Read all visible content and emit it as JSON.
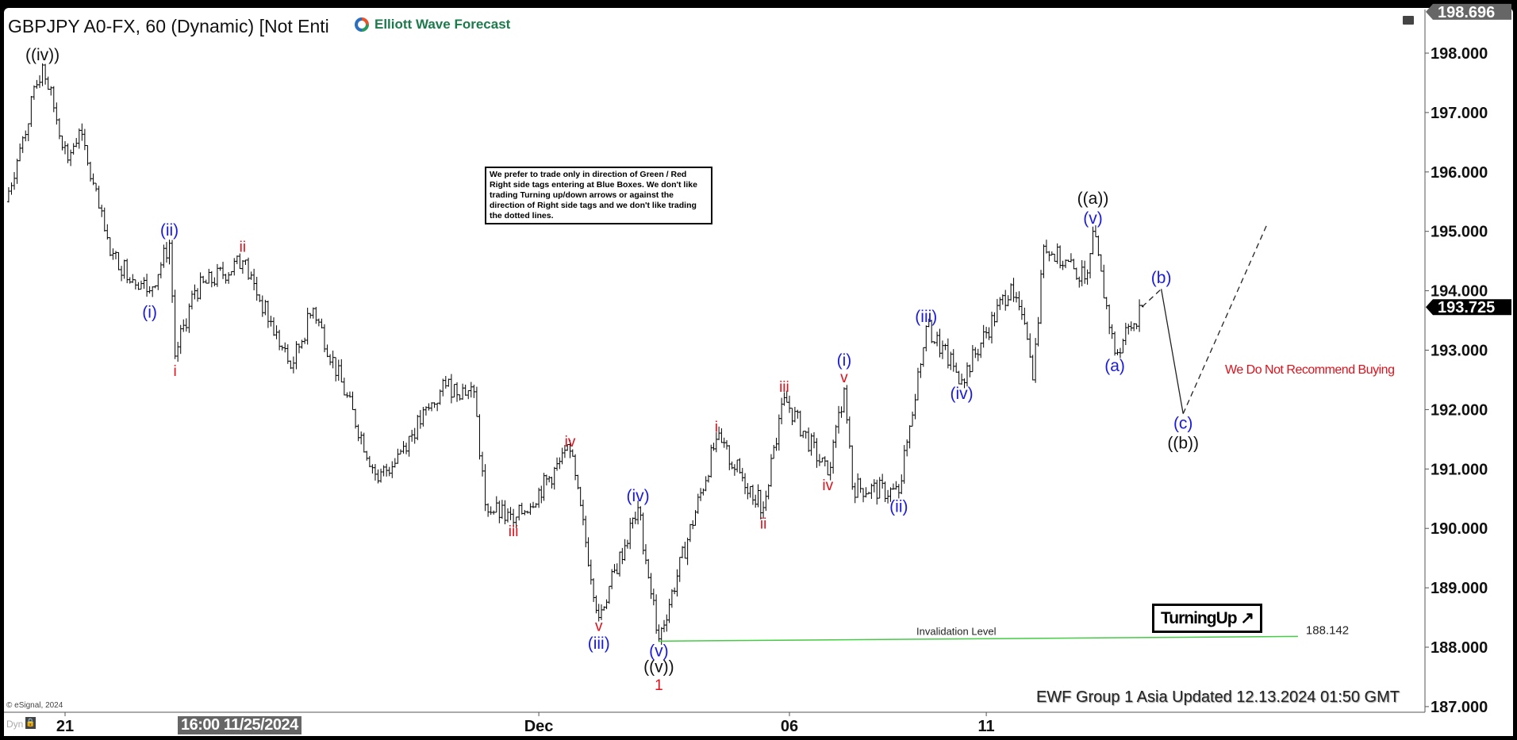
{
  "header": {
    "title": "GBPJPY A0-FX, 60 (Dynamic) [Not Enti",
    "logo_text": "Elliott Wave Forecast"
  },
  "notes": {
    "info_box": "We prefer to trade only in direction of Green / Red Right side tags entering at Blue Boxes. We don't like trading Turning up/down arrows or against the direction of Right side tags and we don't like trading the dotted lines.",
    "turning_up": "TurningUp",
    "turning_up_icon": "arrow-up-right-icon",
    "no_buy": "We Do Not Recommend Buying",
    "footer": "EWF Group 1 Asia Updated 12.13.2024 01:50 GMT",
    "copyright": "© eSignal, 2024",
    "dyn": "Dyn",
    "cursor_date": "16:00 11/25/2024"
  },
  "chart_data": {
    "type": "ohlc",
    "symbol": "GBPJPY",
    "interval": "60",
    "ylim": [
      186.9,
      198.8
    ],
    "y_ticks": [
      "198.000",
      "197.000",
      "196.000",
      "195.000",
      "194.000",
      "193.000",
      "192.000",
      "191.000",
      "190.000",
      "189.000",
      "188.000",
      "187.000"
    ],
    "x_ticks": [
      {
        "label": "21",
        "date": "2024-11-21 00:00"
      },
      {
        "label": "Dec",
        "date": "2024-12-02 00:00"
      },
      {
        "label": "06",
        "date": "2024-12-06 00:00"
      },
      {
        "label": "11",
        "date": "2024-12-11 00:00"
      }
    ],
    "high_tag": "198.696",
    "last_price_tag": "193.725",
    "price_path": [
      [
        "2024-11-20 03:00",
        195.5
      ],
      [
        "2024-11-20 08:00",
        196.4
      ],
      [
        "2024-11-20 16:00",
        197.8
      ],
      [
        "2024-11-21 01:00",
        196.2
      ],
      [
        "2024-11-21 05:00",
        196.7
      ],
      [
        "2024-11-21 16:00",
        194.6
      ],
      [
        "2024-11-22 06:00",
        194.0
      ],
      [
        "2024-11-22 13:00",
        194.8
      ],
      [
        "2024-11-22 15:00",
        192.9
      ],
      [
        "2024-11-22 22:00",
        194.0
      ],
      [
        "2024-11-25 15:00",
        194.5
      ],
      [
        "2024-11-26 08:00",
        192.7
      ],
      [
        "2024-11-26 16:00",
        193.7
      ],
      [
        "2024-11-27 15:00",
        190.8
      ],
      [
        "2024-11-28 15:00",
        192.4
      ],
      [
        "2024-11-29 01:00",
        192.3
      ],
      [
        "2024-11-29 05:00",
        190.4
      ],
      [
        "2024-11-29 15:00",
        190.1
      ],
      [
        "2024-12-02 12:00",
        191.3
      ],
      [
        "2024-12-02 23:00",
        188.5
      ],
      [
        "2024-12-03 14:00",
        190.35
      ],
      [
        "2024-12-03 22:00",
        188.14
      ],
      [
        "2024-12-04 20:00",
        191.5
      ],
      [
        "2024-12-05 14:00",
        190.35
      ],
      [
        "2024-12-05 22:00",
        192.2
      ],
      [
        "2024-12-06 14:00",
        190.9
      ],
      [
        "2024-12-06 20:00",
        192.35
      ],
      [
        "2024-12-06 23:00",
        190.7
      ],
      [
        "2024-12-09 16:00",
        190.6
      ],
      [
        "2024-12-10 02:00",
        193.4
      ],
      [
        "2024-12-10 15:00",
        192.5
      ],
      [
        "2024-12-11 09:00",
        194.1
      ],
      [
        "2024-12-11 14:00",
        193.45
      ],
      [
        "2024-12-11 17:00",
        192.5
      ],
      [
        "2024-12-11 21:00",
        194.75
      ],
      [
        "2024-12-12 12:00",
        194.2
      ],
      [
        "2024-12-12 15:00",
        195.0
      ],
      [
        "2024-12-12 23:00",
        192.95
      ],
      [
        "2024-12-13 09:00",
        193.73
      ]
    ],
    "projection": [
      {
        "from": [
          "2024-12-13 09:00",
          193.73
        ],
        "to": [
          "2024-12-13 16:00",
          194.03
        ],
        "style": "dashed"
      },
      {
        "from": [
          "2024-12-13 16:00",
          194.03
        ],
        "to": [
          "2024-12-16 00:00",
          191.93
        ],
        "style": "solid"
      },
      {
        "from": [
          "2024-12-16 00:00",
          191.93
        ],
        "to": [
          "2024-12-17 07:00",
          195.15
        ],
        "style": "dashed"
      }
    ],
    "invalidation": {
      "label": "Invalidation Level",
      "value": "188.142",
      "price": 188.142,
      "from": "2024-12-03 22:00",
      "to": "2024-12-17 18:00",
      "color": "#44cc44"
    },
    "colors": {
      "black": "#111111",
      "blue": "#1a1ae0",
      "red": "#e0101a"
    },
    "wave_labels": [
      {
        "text": "((iv))",
        "color": "black",
        "time": "2024-11-20 16:00",
        "price": 197.97
      },
      {
        "text": "(i)",
        "color": "blue",
        "time": "2024-11-22 06:00",
        "price": 193.64
      },
      {
        "text": "(ii)",
        "color": "blue",
        "time": "2024-11-22 13:00",
        "price": 195.02
      },
      {
        "text": "i",
        "color": "red",
        "time": "2024-11-22 15:00",
        "price": 192.66
      },
      {
        "text": "ii",
        "color": "red",
        "time": "2024-11-25 15:00",
        "price": 194.75
      },
      {
        "text": "iii",
        "color": "red",
        "time": "2024-11-29 15:00",
        "price": 189.96
      },
      {
        "text": "iv",
        "color": "red",
        "time": "2024-12-02 12:00",
        "price": 191.47
      },
      {
        "text": "v",
        "color": "red",
        "time": "2024-12-02 23:00",
        "price": 188.37
      },
      {
        "text": "(iii)",
        "color": "blue",
        "time": "2024-12-02 23:00",
        "price": 188.07
      },
      {
        "text": "(iv)",
        "color": "blue",
        "time": "2024-12-03 14:00",
        "price": 190.55
      },
      {
        "text": "(v)",
        "color": "blue",
        "time": "2024-12-03 22:00",
        "price": 187.94
      },
      {
        "text": "((v))",
        "color": "black",
        "time": "2024-12-03 22:00",
        "price": 187.67
      },
      {
        "text": "1",
        "color": "red",
        "time": "2024-12-03 22:00",
        "price": 187.37
      },
      {
        "text": "i",
        "color": "red",
        "time": "2024-12-04 20:00",
        "price": 191.72
      },
      {
        "text": "ii",
        "color": "red",
        "time": "2024-12-05 14:00",
        "price": 190.09
      },
      {
        "text": "iii",
        "color": "red",
        "time": "2024-12-05 22:00",
        "price": 192.39
      },
      {
        "text": "iv",
        "color": "red",
        "time": "2024-12-06 14:00",
        "price": 190.74
      },
      {
        "text": "(i)",
        "color": "blue",
        "time": "2024-12-06 20:00",
        "price": 192.83
      },
      {
        "text": "v",
        "color": "red",
        "time": "2024-12-06 20:00",
        "price": 192.55
      },
      {
        "text": "(ii)",
        "color": "blue",
        "time": "2024-12-09 16:00",
        "price": 190.37
      },
      {
        "text": "(iii)",
        "color": "blue",
        "time": "2024-12-10 02:00",
        "price": 193.57
      },
      {
        "text": "(iv)",
        "color": "blue",
        "time": "2024-12-10 15:00",
        "price": 192.27
      },
      {
        "text": "((a))",
        "color": "black",
        "time": "2024-12-12 15:00",
        "price": 195.56
      },
      {
        "text": "(v)",
        "color": "blue",
        "time": "2024-12-12 15:00",
        "price": 195.22
      },
      {
        "text": "(a)",
        "color": "blue",
        "time": "2024-12-12 23:00",
        "price": 192.74
      },
      {
        "text": "(b)",
        "color": "blue",
        "time": "2024-12-13 16:00",
        "price": 194.22
      },
      {
        "text": "(c)",
        "color": "blue",
        "time": "2024-12-16 00:00",
        "price": 191.77
      },
      {
        "text": "((b))",
        "color": "black",
        "time": "2024-12-16 00:00",
        "price": 191.44
      }
    ]
  }
}
